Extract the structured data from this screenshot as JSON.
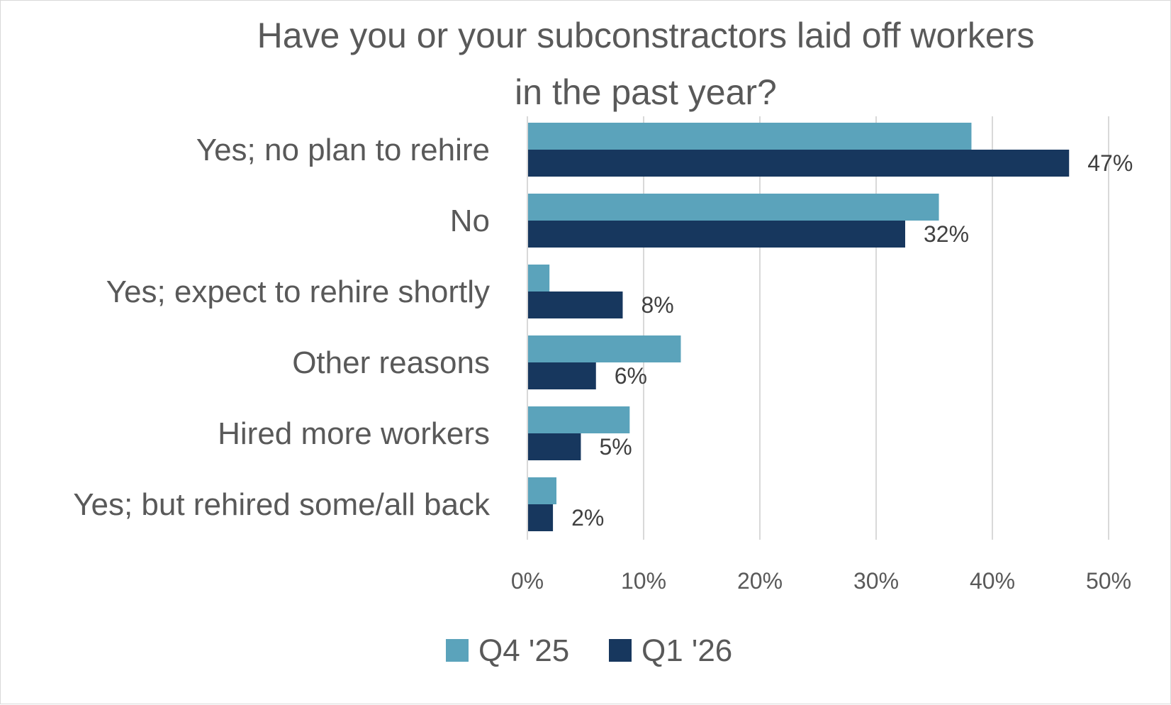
{
  "chart_data": {
    "type": "bar",
    "orientation": "horizontal",
    "title_lines": [
      "Have you or your subconstractors laid off workers",
      "in the past year?"
    ],
    "categories": [
      "Yes; no plan to rehire",
      "No",
      "Yes; expect to rehire shortly",
      "Other reasons",
      "Hired more workers",
      "Yes; but rehired some/all back"
    ],
    "series": [
      {
        "name": "Q4 '25",
        "color": "#5ba3bb",
        "values": [
          38.2,
          35.4,
          1.9,
          13.2,
          8.8,
          2.5
        ]
      },
      {
        "name": "Q1 '26",
        "color": "#17375e",
        "values": [
          46.6,
          32.5,
          8.2,
          5.9,
          4.6,
          2.2
        ],
        "data_labels": [
          "47%",
          "32%",
          "8%",
          "6%",
          "5%",
          "2%"
        ]
      }
    ],
    "xlim": [
      0,
      50
    ],
    "x_ticks": [
      0,
      10,
      20,
      30,
      40,
      50
    ],
    "x_tick_labels": [
      "0%",
      "10%",
      "20%",
      "30%",
      "40%",
      "50%"
    ],
    "xlabel": "",
    "ylabel": "",
    "grid": "vertical",
    "legend_position": "bottom"
  }
}
